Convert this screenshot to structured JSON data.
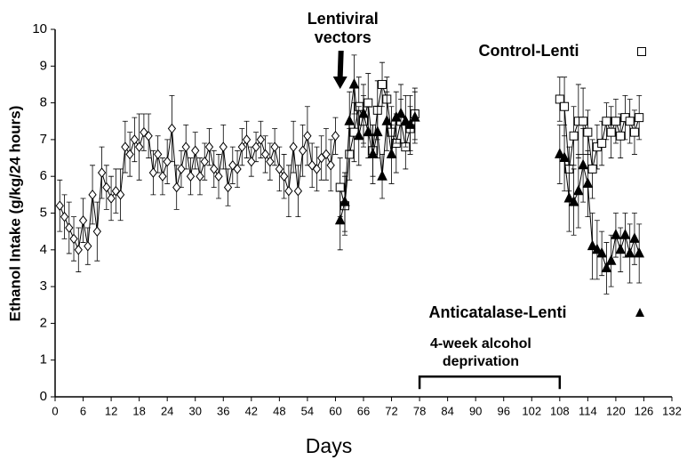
{
  "chart_data": {
    "type": "line",
    "xlabel": "Days",
    "ylabel": "Ethanol Intake (g/kg/24 hours)",
    "xlim": [
      0,
      132
    ],
    "ylim": [
      0,
      10
    ],
    "xticks": [
      0,
      6,
      12,
      18,
      24,
      30,
      36,
      42,
      48,
      54,
      60,
      66,
      72,
      78,
      84,
      90,
      96,
      102,
      108,
      114,
      120,
      126,
      132
    ],
    "yticks": [
      0,
      1,
      2,
      3,
      4,
      5,
      6,
      7,
      8,
      9,
      10
    ],
    "series": [
      {
        "marker": "diamond",
        "color": "#000000",
        "x": [
          1,
          2,
          3,
          4,
          5,
          6,
          7,
          8,
          9,
          10,
          11,
          12,
          13,
          14,
          15,
          16,
          17,
          18,
          19,
          20,
          21,
          22,
          23,
          24,
          25,
          26,
          27,
          28,
          29,
          30,
          31,
          32,
          33,
          34,
          35,
          36,
          37,
          38,
          39,
          40,
          41,
          42,
          43,
          44,
          45,
          46,
          47,
          48,
          49,
          50,
          51,
          52,
          53,
          54,
          55,
          56,
          57,
          58,
          59,
          60
        ],
        "values": [
          5.2,
          4.9,
          4.6,
          4.3,
          4.0,
          4.8,
          4.1,
          5.5,
          4.5,
          6.1,
          5.7,
          5.4,
          5.6,
          5.5,
          6.8,
          6.6,
          7.0,
          6.8,
          7.2,
          7.1,
          6.1,
          6.6,
          6.0,
          6.4,
          7.3,
          5.7,
          6.2,
          6.8,
          6.0,
          6.7,
          6.0,
          6.4,
          6.8,
          6.2,
          6.0,
          6.8,
          5.7,
          6.3,
          6.2,
          6.8,
          7.0,
          6.4,
          6.8,
          7.0,
          6.6,
          6.4,
          6.8,
          6.2,
          6.0,
          5.6,
          6.8,
          5.6,
          6.7,
          7.1,
          6.3,
          6.2,
          6.5,
          6.6,
          6.3,
          7.1
        ],
        "errors": [
          0.7,
          0.6,
          0.7,
          0.6,
          0.6,
          0.6,
          0.5,
          0.8,
          0.8,
          0.7,
          0.6,
          0.6,
          0.6,
          0.7,
          0.7,
          0.6,
          0.6,
          0.9,
          0.5,
          0.6,
          0.6,
          0.5,
          0.5,
          0.6,
          0.9,
          0.6,
          0.5,
          0.6,
          0.5,
          0.5,
          0.5,
          0.5,
          0.5,
          0.5,
          0.6,
          0.6,
          0.5,
          0.5,
          0.5,
          0.5,
          0.5,
          0.4,
          0.4,
          0.5,
          0.5,
          0.5,
          0.5,
          0.6,
          0.6,
          0.7,
          0.7,
          0.7,
          0.7,
          0.8,
          0.6,
          0.6,
          0.6,
          0.7,
          0.7,
          0.5
        ]
      },
      {
        "name": "Control-Lenti",
        "marker": "square",
        "color": "#000000",
        "x": [
          61,
          62,
          63,
          64,
          65,
          66,
          67,
          68,
          69,
          70,
          71,
          72,
          73,
          74,
          75,
          76,
          77,
          null,
          108,
          109,
          110,
          111,
          112,
          113,
          114,
          115,
          116,
          117,
          118,
          119,
          120,
          121,
          122,
          123,
          124,
          125
        ],
        "values": [
          5.7,
          5.2,
          6.6,
          7.2,
          7.9,
          7.5,
          8.0,
          6.7,
          7.8,
          8.5,
          8.1,
          7.2,
          6.9,
          7.5,
          6.8,
          7.3,
          7.7,
          null,
          8.1,
          7.9,
          6.2,
          7.1,
          7.5,
          7.5,
          7.2,
          6.2,
          6.8,
          6.9,
          7.5,
          7.2,
          7.5,
          7.1,
          7.6,
          7.5,
          7.2,
          7.6
        ],
        "errors": [
          0.8,
          0.8,
          0.7,
          0.8,
          0.8,
          0.7,
          0.8,
          0.7,
          0.8,
          0.6,
          0.6,
          0.7,
          0.8,
          0.6,
          0.6,
          0.6,
          0.7,
          null,
          0.6,
          0.8,
          0.6,
          0.8,
          1.0,
          0.9,
          0.6,
          0.8,
          0.6,
          0.6,
          0.5,
          0.7,
          0.6,
          0.6,
          0.6,
          0.6,
          0.6,
          0.6
        ]
      },
      {
        "name": "Anticatalase-Lenti",
        "marker": "triangle",
        "color": "#000000",
        "x": [
          61,
          62,
          63,
          64,
          65,
          66,
          67,
          68,
          69,
          70,
          71,
          72,
          73,
          74,
          75,
          76,
          77,
          null,
          108,
          109,
          110,
          111,
          112,
          113,
          114,
          115,
          116,
          117,
          118,
          119,
          120,
          121,
          122,
          123,
          124,
          125
        ],
        "values": [
          4.8,
          5.3,
          7.5,
          8.5,
          7.1,
          7.7,
          7.2,
          6.6,
          7.2,
          6.0,
          7.5,
          6.6,
          7.6,
          7.7,
          7.5,
          7.4,
          7.6,
          null,
          6.6,
          6.5,
          5.4,
          5.3,
          5.6,
          6.3,
          5.8,
          4.1,
          4.0,
          3.9,
          3.5,
          3.7,
          4.4,
          4.0,
          4.4,
          3.9,
          4.3,
          3.9
        ],
        "errors": [
          0.8,
          0.8,
          0.8,
          0.8,
          0.8,
          0.8,
          0.7,
          0.8,
          0.7,
          0.6,
          0.8,
          0.8,
          0.7,
          0.8,
          0.7,
          0.8,
          0.7,
          null,
          0.8,
          0.9,
          0.9,
          0.9,
          1.0,
          1.0,
          0.9,
          0.9,
          0.8,
          0.6,
          0.7,
          0.7,
          0.6,
          0.6,
          0.6,
          0.8,
          0.7,
          0.8
        ]
      }
    ],
    "annotations": [
      {
        "lines": [
          "Lentiviral",
          "vectors"
        ],
        "x": 61
      },
      {
        "lines": [
          "4-week alcohol",
          "deprivation"
        ],
        "x": [
          78,
          108
        ],
        "y": 0.55
      }
    ]
  }
}
